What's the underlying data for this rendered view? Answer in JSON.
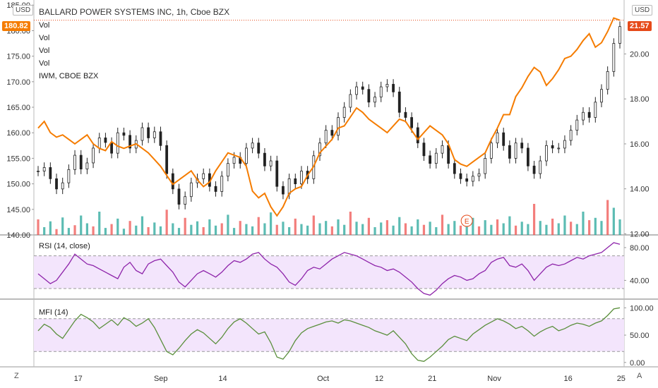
{
  "header": {
    "title": "BALLARD POWER SYSTEMS INC, 1h, Cboe BZX",
    "vol_labels": [
      "Vol",
      "Vol",
      "Vol",
      "Vol"
    ],
    "compare_label": "IWM, CBOE BZX",
    "left_currency": "USD",
    "right_currency": "USD",
    "left_price_tag": "180.82",
    "right_price_tag": "21.57",
    "earnings_marker": "E"
  },
  "panes": {
    "rsi_label": "RSI (14, close)",
    "mfi_label": "MFI (14)"
  },
  "bottom": {
    "left_button": "Z",
    "right_button": "A"
  },
  "colors": {
    "price_series": "#f57c00",
    "candles": "#222222",
    "volume_up": "#26a69a",
    "volume_down": "#ef5350",
    "rsi_line": "#8e24aa",
    "mfi_line": "#5a8f3c",
    "band_fill": "#f3e5fc",
    "price_tag_left": "#f57c00",
    "price_tag_right": "#e64a19"
  },
  "chart_data": [
    {
      "type": "line",
      "name": "main",
      "x_ticks": [
        "17",
        "Sep",
        "14",
        "Oct",
        "12",
        "21",
        "Nov",
        "16",
        "25"
      ],
      "left_axis": {
        "ticks": [
          "185.00",
          "180.00",
          "175.00",
          "170.00",
          "165.00",
          "160.00",
          "155.00",
          "150.00",
          "145.00",
          "140.00"
        ],
        "range": [
          140,
          186
        ]
      },
      "right_axis": {
        "ticks": [
          "20.00",
          "18.00",
          "16.00",
          "14.00",
          "12.00"
        ],
        "range": [
          11.95,
          22.4
        ]
      },
      "series": [
        {
          "name": "IWM, CBOE BZX",
          "axis": "left",
          "kind": "candles",
          "values": [
            152.5,
            153.2,
            151.0,
            149.0,
            150.2,
            152.8,
            155.6,
            152.9,
            154.1,
            157.0,
            159.0,
            158.1,
            156.0,
            160.0,
            159.5,
            157.0,
            158.5,
            161.0,
            159.0,
            160.2,
            157.5,
            152.0,
            149.0,
            146.0,
            147.5,
            150.2,
            151.0,
            152.0,
            149.5,
            148.5,
            151.5,
            154.0,
            155.2,
            154.0,
            157.0,
            158.0,
            156.0,
            153.5,
            154.5,
            149.5,
            148.0,
            151.0,
            150.0,
            152.5,
            151.0,
            155.5,
            158.0,
            160.5,
            159.5,
            163.0,
            165.0,
            167.5,
            169.0,
            168.5,
            166.0,
            167.0,
            169.0,
            169.5,
            168.0,
            164.0,
            163.0,
            161.0,
            158.0,
            155.5,
            154.0,
            156.0,
            157.5,
            154.0,
            152.0,
            151.0,
            150.5,
            151.5,
            152.0,
            155.0,
            158.0,
            160.0,
            157.5,
            155.0,
            158.0,
            157.0,
            153.5,
            152.0,
            154.5,
            157.5,
            157.0,
            157.0,
            158.5,
            160.5,
            162.5,
            164.0,
            163.0,
            166.0,
            168.5,
            172.0,
            177.5,
            180.8
          ]
        },
        {
          "name": "Vol",
          "axis": "right",
          "kind": "line",
          "values": [
            16.7,
            17.0,
            16.5,
            16.3,
            16.4,
            16.2,
            16.0,
            16.2,
            16.4,
            16.0,
            15.8,
            15.7,
            16.1,
            15.9,
            15.8,
            15.9,
            16.0,
            15.8,
            15.6,
            15.3,
            15.0,
            14.6,
            14.2,
            14.4,
            14.6,
            14.8,
            14.4,
            14.1,
            14.3,
            14.8,
            15.2,
            15.6,
            15.5,
            15.4,
            15.0,
            13.9,
            13.6,
            13.8,
            13.2,
            12.8,
            13.2,
            13.8,
            14.0,
            14.1,
            14.6,
            15.0,
            15.6,
            15.9,
            16.2,
            16.7,
            16.8,
            17.2,
            17.6,
            17.4,
            17.1,
            16.9,
            16.7,
            16.5,
            16.8,
            17.1,
            17.0,
            16.6,
            16.2,
            16.5,
            16.8,
            16.6,
            16.4,
            16.0,
            15.3,
            15.1,
            15.0,
            15.2,
            15.4,
            15.6,
            16.2,
            16.7,
            17.3,
            17.3,
            18.1,
            18.5,
            19.0,
            19.4,
            19.2,
            18.6,
            18.9,
            19.3,
            19.8,
            19.9,
            20.2,
            20.6,
            20.9,
            20.3,
            20.5,
            21.0,
            21.6,
            21.5
          ]
        }
      ]
    },
    {
      "type": "line",
      "name": "RSI (14, close)",
      "y_ticks": [
        "80.00",
        "40.00"
      ],
      "range": [
        18,
        92
      ],
      "band": [
        30,
        70
      ],
      "values": [
        48,
        42,
        36,
        40,
        50,
        60,
        72,
        66,
        60,
        58,
        54,
        50,
        46,
        42,
        56,
        62,
        52,
        48,
        60,
        64,
        66,
        58,
        50,
        38,
        32,
        40,
        48,
        52,
        48,
        44,
        50,
        58,
        64,
        62,
        66,
        72,
        74,
        66,
        60,
        56,
        48,
        38,
        34,
        42,
        52,
        56,
        54,
        60,
        66,
        70,
        74,
        72,
        70,
        66,
        62,
        58,
        56,
        52,
        54,
        50,
        44,
        38,
        30,
        24,
        22,
        28,
        36,
        42,
        46,
        44,
        40,
        42,
        48,
        52,
        62,
        66,
        68,
        58,
        56,
        60,
        52,
        40,
        48,
        56,
        60,
        58,
        60,
        64,
        68,
        66,
        70,
        72,
        74,
        80,
        86,
        84
      ]
    },
    {
      "type": "line",
      "name": "MFI (14)",
      "y_ticks": [
        "100.00",
        "50.00",
        "0.00"
      ],
      "range": [
        -8,
        112
      ],
      "band": [
        20,
        80
      ],
      "values": [
        58,
        70,
        64,
        52,
        44,
        60,
        76,
        88,
        82,
        74,
        62,
        70,
        78,
        68,
        82,
        76,
        66,
        72,
        80,
        64,
        42,
        20,
        14,
        26,
        40,
        52,
        60,
        54,
        44,
        34,
        46,
        62,
        74,
        80,
        72,
        62,
        52,
        56,
        36,
        10,
        6,
        20,
        40,
        54,
        62,
        66,
        70,
        74,
        76,
        72,
        78,
        76,
        72,
        68,
        64,
        58,
        54,
        50,
        58,
        46,
        34,
        16,
        4,
        2,
        10,
        20,
        30,
        42,
        48,
        44,
        40,
        52,
        60,
        68,
        74,
        80,
        76,
        70,
        62,
        66,
        58,
        48,
        56,
        62,
        66,
        58,
        62,
        68,
        72,
        70,
        66,
        72,
        76,
        86,
        98,
        100
      ]
    },
    {
      "type": "bar",
      "name": "Vol",
      "values": [
        40,
        20,
        35,
        15,
        45,
        18,
        25,
        50,
        30,
        22,
        60,
        18,
        28,
        42,
        16,
        36,
        24,
        48,
        20,
        32,
        22,
        65,
        30,
        18,
        44,
        26,
        35,
        20,
        40,
        24,
        30,
        52,
        18,
        36,
        28,
        22,
        46,
        30,
        58,
        26,
        34,
        20,
        42,
        28,
        24,
        50,
        30,
        36,
        22,
        40,
        26,
        60,
        34,
        28,
        44,
        20,
        32,
        38,
        24,
        46,
        30,
        22,
        40,
        26,
        34,
        20,
        52,
        28,
        36,
        24,
        30,
        44,
        22,
        38,
        26,
        40,
        30,
        48,
        24,
        34,
        28,
        80,
        36,
        26,
        42,
        30,
        50,
        34,
        28,
        60,
        38,
        44,
        36,
        90,
        70,
        40
      ]
    }
  ]
}
